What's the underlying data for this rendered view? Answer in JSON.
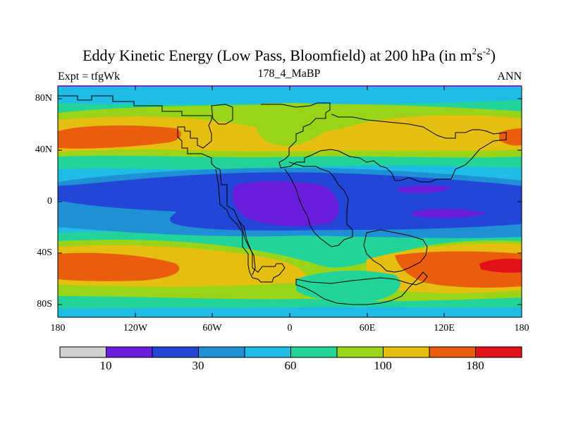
{
  "title": {
    "main": "Eddy Kinetic Energy (Low Pass, Bloomfield) at 200 hPa (in m",
    "sup1": "2",
    "mid": "s",
    "sup2": "-2",
    "close": ")"
  },
  "subtitle": {
    "left": "Expt = tfgWk",
    "center": "178_4_MaBP",
    "right": "ANN"
  },
  "lat_labels": [
    "80N",
    "40N",
    "0",
    "40S",
    "80S"
  ],
  "lon_labels": [
    "180",
    "120W",
    "60W",
    "0",
    "60E",
    "120E",
    "180"
  ],
  "colorbar": {
    "colors": [
      "#cfcfcf",
      "#6a1edb",
      "#2247d6",
      "#1f8fd6",
      "#1fbde6",
      "#22d49a",
      "#9ad419",
      "#e4be10",
      "#e95d0c",
      "#e3101a"
    ],
    "labels": [
      "10",
      "30",
      "60",
      "100",
      "180"
    ]
  },
  "colors": {
    "frame": "#000000",
    "coastline": "#000000",
    "top_edge": "#7a2ad8"
  }
}
